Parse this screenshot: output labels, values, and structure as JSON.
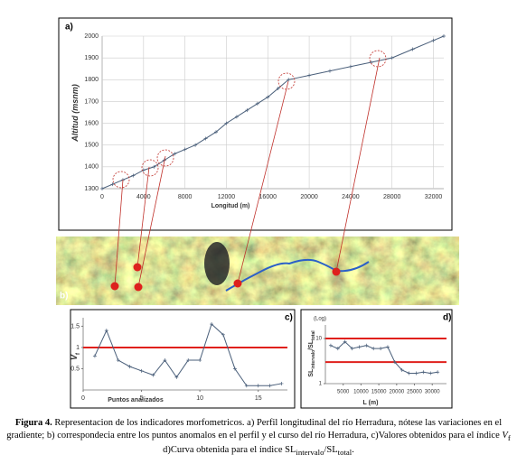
{
  "chart_data": [
    {
      "type": "line",
      "panel": "a)",
      "x_label": "Longitud (m)",
      "y_label": "Altitud (msnm)",
      "xlim": [
        0,
        33000
      ],
      "ylim": [
        1300,
        2000
      ],
      "xticks": [
        0,
        4000,
        8000,
        12000,
        16000,
        20000,
        24000,
        28000,
        32000
      ],
      "yticks": [
        1300,
        1400,
        1500,
        1600,
        1700,
        1800,
        1900,
        2000
      ],
      "color": "#4a5f7a",
      "grid": true,
      "x": [
        0,
        1000,
        2000,
        3000,
        4000,
        5000,
        6000,
        7000,
        8000,
        9000,
        10000,
        11000,
        12000,
        13000,
        14000,
        15000,
        16000,
        17000,
        18000,
        20000,
        22000,
        24000,
        26000,
        28000,
        30000,
        32000,
        33000
      ],
      "values": [
        1300,
        1320,
        1340,
        1360,
        1385,
        1400,
        1430,
        1460,
        1480,
        1500,
        1530,
        1560,
        1600,
        1630,
        1660,
        1690,
        1720,
        1760,
        1800,
        1820,
        1840,
        1860,
        1880,
        1900,
        1940,
        1980,
        2000
      ]
    },
    {
      "type": "line",
      "panel": "c)",
      "x_label": "Puntos analizados",
      "y_label": "V",
      "y_label_sub": "f",
      "xlim": [
        0,
        17.5
      ],
      "ylim": [
        0,
        1.7
      ],
      "xticks": [
        0,
        5,
        10,
        15
      ],
      "yticks": [
        0.5,
        1,
        1.5
      ],
      "color": "#4a5f7a",
      "reference_lines": [
        1
      ],
      "reference_color": "#e0201c",
      "x": [
        1,
        2,
        3,
        4,
        5,
        6,
        7,
        8,
        9,
        10,
        11,
        12,
        13,
        14,
        15,
        16,
        17
      ],
      "values": [
        0.8,
        1.4,
        0.7,
        0.55,
        0.45,
        0.35,
        0.7,
        0.3,
        0.7,
        0.7,
        1.55,
        1.3,
        0.5,
        0.1,
        0.1,
        0.1,
        0.15
      ]
    },
    {
      "type": "line",
      "panel": "d)",
      "log_label": "(Log)",
      "x_label": "L (m)",
      "y_label": [
        "SL",
        "intervalo",
        "/SL",
        "total"
      ],
      "xlim": [
        0,
        34000
      ],
      "ylim": [
        1,
        20
      ],
      "log_scale": true,
      "xticks": [
        5000,
        10000,
        15000,
        20000,
        25000,
        30000
      ],
      "yticks": [
        1,
        10
      ],
      "color": "#4a5f7a",
      "reference_lines": [
        10,
        3
      ],
      "reference_color": "#e0201c",
      "x": [
        1500,
        3500,
        5500,
        7500,
        9500,
        11500,
        13500,
        15500,
        17500,
        19500,
        21500,
        23500,
        25500,
        27500,
        29500,
        31500
      ],
      "values": [
        7,
        6,
        8.5,
        6,
        6.5,
        7,
        6,
        6,
        6.5,
        3,
        2,
        1.7,
        1.7,
        1.8,
        1.7,
        1.8
      ]
    }
  ],
  "image_panel": "b)",
  "caption": [
    "Figura 4.",
    " Representacion de los indicadores morfometricos. a) Perfil longitudinal del río Herradura, nótese las variaciones en el gradiente; b) correspondecia entre los puntos anomalos en el perfil y el curso del río Herradura, c)Valores obtenidos para el índice ",
    "V",
    "f",
    " d)Curva obtenida para el índice SL",
    "intervalo",
    "/SL",
    "total",
    "."
  ]
}
